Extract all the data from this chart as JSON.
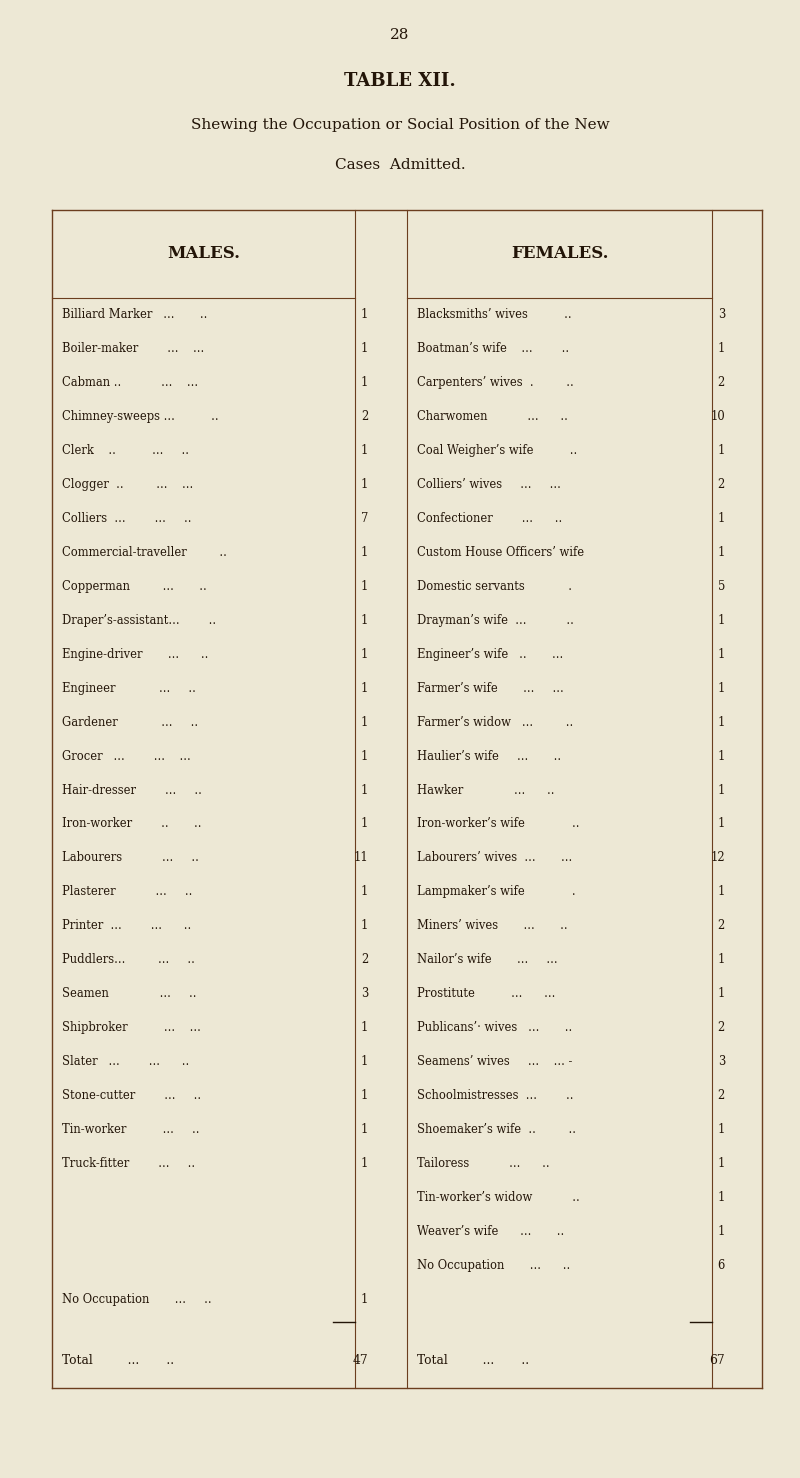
{
  "page_number": "28",
  "table_title": "TABLE XII.",
  "subtitle_line1": "Shewing the Occupation or Social Position of the New",
  "subtitle_line2": "Cases  Admitted.",
  "males_header": "MALES.",
  "females_header": "FEMALES.",
  "males": [
    [
      "Billiard Marker   ...       ..",
      "1"
    ],
    [
      "Boiler-maker        ...    ...",
      "1"
    ],
    [
      "Cabman ..           ...    ...",
      "1"
    ],
    [
      "Chimney-sweeps ...          ..",
      "2"
    ],
    [
      "Clerk    ..          ...     ..",
      "1"
    ],
    [
      "Clogger  ..         ...    ...",
      "1"
    ],
    [
      "Colliers  ...        ...     ..",
      "7"
    ],
    [
      "Commercial-traveller         ..",
      "1"
    ],
    [
      "Copperman         ...       ..",
      "1"
    ],
    [
      "Draper’s-assistant...        ..",
      "1"
    ],
    [
      "Engine-driver       ...      ..",
      "1"
    ],
    [
      "Engineer            ...     ..",
      "1"
    ],
    [
      "Gardener            ...     ..",
      "1"
    ],
    [
      "Grocer   ...        ...    ...",
      "1"
    ],
    [
      "Hair-dresser        ...     ..",
      "1"
    ],
    [
      "Iron-worker        ..       ..",
      "1"
    ],
    [
      "Labourers           ...     ..",
      "11"
    ],
    [
      "Plasterer           ...     ..",
      "1"
    ],
    [
      "Printer  ...        ...      ..",
      "1"
    ],
    [
      "Puddlers...         ...     ..",
      "2"
    ],
    [
      "Seamen              ...     ..",
      "3"
    ],
    [
      "Shipbroker          ...    ...",
      "1"
    ],
    [
      "Slater   ...        ...      ..",
      "1"
    ],
    [
      "Stone-cutter        ...     ..",
      "1"
    ],
    [
      "Tin-worker          ...     ..",
      "1"
    ],
    [
      "Truck-fitter        ...     ..",
      "1"
    ],
    [
      "",
      ""
    ],
    [
      "",
      ""
    ],
    [
      "",
      ""
    ],
    [
      "No Occupation       ...     ..",
      "1"
    ],
    [
      "",
      ""
    ],
    [
      "Total        ...       ..",
      "47"
    ]
  ],
  "females": [
    [
      "Blacksmiths’ wives          ..",
      "3"
    ],
    [
      "Boatman’s wife    ...        ..",
      "1"
    ],
    [
      "Carpenters’ wives  .         ..",
      "2"
    ],
    [
      "Charwomen           ...      ..",
      "10"
    ],
    [
      "Coal Weigher’s wife          ..",
      "1"
    ],
    [
      "Colliers’ wives     ...     ...",
      "2"
    ],
    [
      "Confectioner        ...      ..",
      "1"
    ],
    [
      "Custom House Officers’ wife",
      "1"
    ],
    [
      "Domestic servants            .",
      "5"
    ],
    [
      "Drayman’s wife  ...           ..",
      "1"
    ],
    [
      "Engineer’s wife   ..       ...",
      "1"
    ],
    [
      "Farmer’s wife       ...     ...",
      "1"
    ],
    [
      "Farmer’s widow   ...         ..",
      "1"
    ],
    [
      "Haulier’s wife     ...       ..",
      "1"
    ],
    [
      "Hawker              ...      ..",
      "1"
    ],
    [
      "Iron‐worker’s wife             ..",
      "1"
    ],
    [
      "Labourers’ wives  ...       ...",
      "12"
    ],
    [
      "Lampmaker’s wife             .",
      "1"
    ],
    [
      "Miners’ wives       ...       ..",
      "2"
    ],
    [
      "Nailor’s wife       ...     ...",
      "1"
    ],
    [
      "Prostitute          ...      ...",
      "1"
    ],
    [
      "Publicans’· wives   ...       ..",
      "2"
    ],
    [
      "Seamens’ wives     ...    ... -",
      "3"
    ],
    [
      "Schoolmistresses  ...        ..",
      "2"
    ],
    [
      "Shoemaker’s wife  ..         ..",
      "1"
    ],
    [
      "Tailoress           ...      ..",
      "1"
    ],
    [
      "Tin-worker’s widow           ..",
      "1"
    ],
    [
      "Weaver’s wife      ...       ..",
      "1"
    ],
    [
      "No Occupation       ...      ..",
      "6"
    ],
    [
      "",
      ""
    ],
    [
      "Total        ...       ..",
      "67"
    ]
  ],
  "males_total_label": "Total        ...       ..",
  "males_total": "47",
  "females_total_label": "Total        ...       ..",
  "females_total": "67",
  "bg_color": "#ede8d5",
  "text_color": "#231508",
  "line_color": "#6b3d1e"
}
